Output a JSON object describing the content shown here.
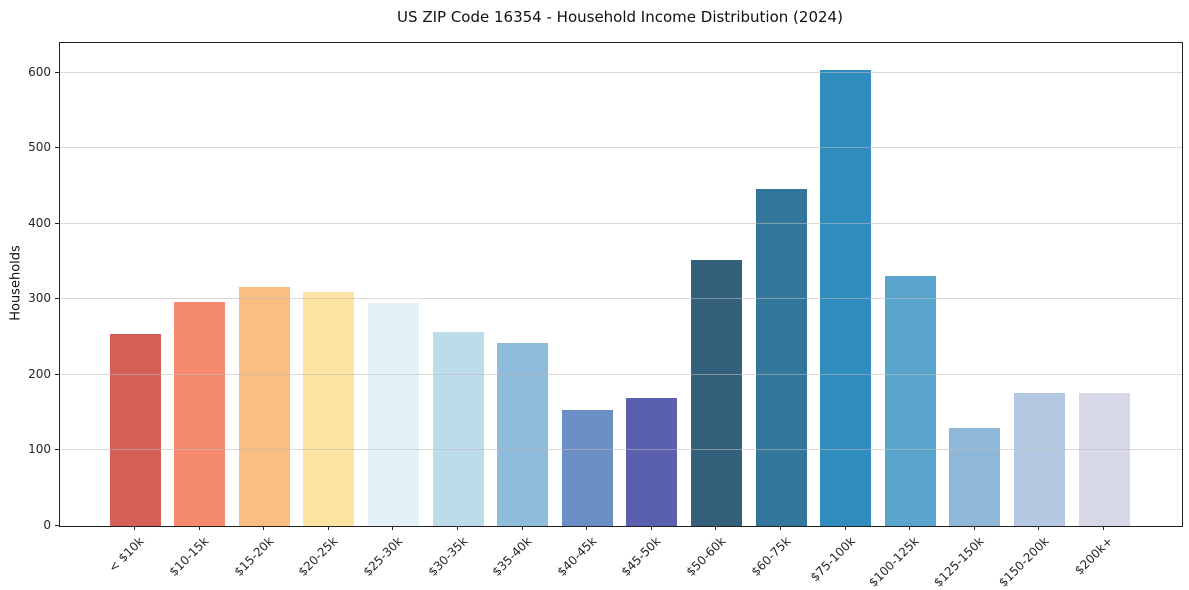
{
  "chart_data": {
    "type": "bar",
    "title": "US ZIP Code 16354 - Household Income Distribution (2024)",
    "xlabel": "",
    "ylabel": "Households",
    "categories": [
      "< $10k",
      "$10-15k",
      "$15-20k",
      "$20-25k",
      "$25-30k",
      "$30-35k",
      "$35-40k",
      "$40-45k",
      "$45-50k",
      "$50-60k",
      "$60-75k",
      "$75-100k",
      "$100-125k",
      "$125-150k",
      "$150-200k",
      "$200k+"
    ],
    "values": [
      254,
      296,
      316,
      309,
      295,
      257,
      242,
      154,
      170,
      352,
      446,
      603,
      331,
      130,
      176,
      176
    ],
    "bar_colors": [
      "#d65f57",
      "#f58b6e",
      "#fcbd82",
      "#fde3a1",
      "#e4f1f7",
      "#bcdcea",
      "#8fbcdb",
      "#6b8ec5",
      "#5a5fae",
      "#34607b",
      "#32769b",
      "#308cbe",
      "#59a5cd",
      "#8fb8d8",
      "#b4c9e1",
      "#d6d8e7"
    ],
    "yticks": [
      0,
      100,
      200,
      300,
      400,
      500,
      600
    ],
    "ylim": [
      0,
      639
    ],
    "grid": "horizontal",
    "grid_over_bars": true,
    "legend": "none",
    "background": "#ffffff",
    "frame_color": "#222222"
  }
}
